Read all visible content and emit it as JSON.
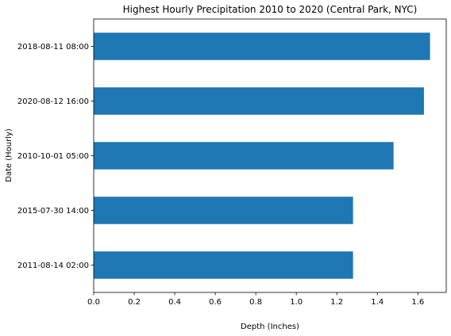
{
  "chart_data": {
    "type": "bar",
    "orientation": "horizontal",
    "title": "Highest Hourly Precipitation 2010 to 2020 (Central Park, NYC)",
    "xlabel": "Depth (Inches)",
    "ylabel": "Date (Hourly)",
    "categories": [
      "2018-08-11 08:00",
      "2020-08-12 16:00",
      "2010-10-01 05:00",
      "2015-07-30 14:00",
      "2011-08-14 02:00"
    ],
    "values": [
      1.66,
      1.63,
      1.48,
      1.28,
      1.28
    ],
    "xlim": [
      0.0,
      1.74
    ],
    "xticks": [
      "0.0",
      "0.2",
      "0.4",
      "0.6",
      "0.8",
      "1.0",
      "1.2",
      "1.4",
      "1.6"
    ],
    "grid": false,
    "legend": "none",
    "bar_color": "#1f77b4"
  }
}
